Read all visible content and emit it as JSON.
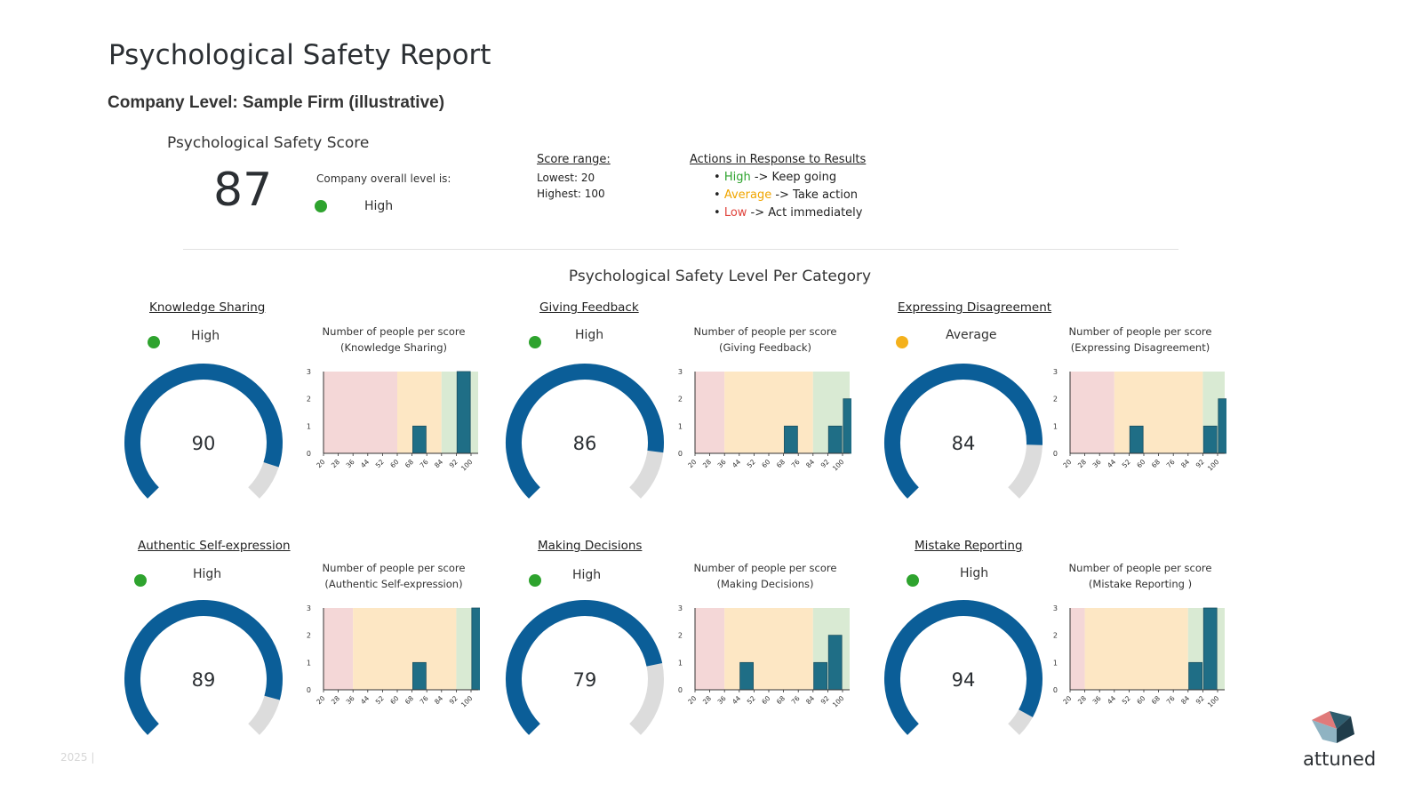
{
  "report": {
    "title": "Psychological Safety Report",
    "subtitle": "Company Level: Sample Firm (illustrative)",
    "score_heading": "Psychological Safety Score",
    "overall_score": "87",
    "overall_caption": "Company overall level is:",
    "overall_level": "High",
    "overall_level_color": "#2ea32e"
  },
  "score_range": {
    "title": "Score range:",
    "lowest": "Lowest: 20",
    "highest": "Highest: 100"
  },
  "actions": {
    "title": "Actions in Response to Results",
    "items": [
      {
        "level": "High",
        "text": " -> Keep going",
        "color": "#2ea32e"
      },
      {
        "level": "Average",
        "text": " -> Take action",
        "color": "#f0a500"
      },
      {
        "level": "Low",
        "text": " -> Act immediately",
        "color": "#e0433c"
      }
    ]
  },
  "section_title": "Psychological Safety Level Per Category",
  "footer": {
    "year": "2025 |",
    "brand": "attuned"
  },
  "colors": {
    "gauge_fill": "#0b5e98",
    "gauge_track": "#dcdcdc",
    "bar": "#1f6e86",
    "zone_low": "#f4d7d7",
    "zone_average": "#fde7c4",
    "zone_high": "#d9ead3",
    "high": "#2ea32e",
    "average": "#f4b11c"
  },
  "chart_data": [
    {
      "type": "bar",
      "name": "Knowledge Sharing",
      "level": "High",
      "level_color": "#2ea32e",
      "score": 90,
      "score_label": "90",
      "title": "Number of people per score",
      "title_paren": "(Knowledge Sharing)",
      "categories": [
        "20",
        "28",
        "36",
        "44",
        "52",
        "60",
        "68",
        "76",
        "84",
        "92",
        "100"
      ],
      "tick_labels": [
        "20",
        "28",
        "36",
        "44",
        "52",
        "60",
        "68",
        "76",
        "84",
        "92",
        "100"
      ],
      "values": [
        0,
        0,
        0,
        0,
        0,
        0,
        1,
        0,
        0,
        3,
        0
      ],
      "ylim": [
        0,
        3
      ],
      "yticks": [
        "0",
        "1",
        "2",
        "3"
      ],
      "zones": {
        "low_end": 60,
        "average_end": 84
      }
    },
    {
      "type": "bar",
      "name": "Giving Feedback",
      "level": "High",
      "level_color": "#2ea32e",
      "score": 86,
      "score_label": "86",
      "title": "Number of people per score",
      "title_paren": "(Giving Feedback)",
      "categories": [
        "20",
        "28",
        "36",
        "44",
        "52",
        "60",
        "68",
        "76",
        "84",
        "92",
        "100"
      ],
      "tick_labels": [
        "20",
        "28",
        "36",
        "44",
        "52",
        "60",
        "68",
        "76",
        "84",
        "92",
        "100"
      ],
      "values": [
        0,
        0,
        0,
        0,
        0,
        0,
        1,
        0,
        0,
        1,
        2
      ],
      "ylim": [
        0,
        3
      ],
      "yticks": [
        "0",
        "1",
        "2",
        "3"
      ],
      "zones": {
        "low_end": 36,
        "average_end": 84
      }
    },
    {
      "type": "bar",
      "name": "Expressing Disagreement",
      "level": "Average",
      "level_color": "#f4b11c",
      "score": 84,
      "score_label": "84",
      "title": "Number of people per score",
      "title_paren": "(Expressing Disagreement)",
      "categories": [
        "20",
        "28",
        "36",
        "44",
        "52",
        "60",
        "68",
        "76",
        "84",
        "92",
        "100"
      ],
      "tick_labels": [
        "20",
        "28",
        "36",
        "44",
        "52",
        "60",
        "68",
        "76",
        "84",
        "92",
        "100"
      ],
      "values": [
        0,
        0,
        0,
        0,
        1,
        0,
        0,
        0,
        0,
        1,
        2
      ],
      "ylim": [
        0,
        3
      ],
      "yticks": [
        "0",
        "1",
        "2",
        "3"
      ],
      "zones": {
        "low_end": 44,
        "average_end": 92
      }
    },
    {
      "type": "bar",
      "name": "Authentic Self-expression",
      "level": "High",
      "level_color": "#2ea32e",
      "score": 89,
      "score_label": "89",
      "title": "Number of people per score",
      "title_paren": "(Authentic Self-expression)",
      "categories": [
        "20",
        "28",
        "36",
        "44",
        "52",
        "60",
        "68",
        "76",
        "84",
        "92",
        "100"
      ],
      "tick_labels": [
        "20",
        "28",
        "36",
        "44",
        "52",
        "60",
        "68",
        "76",
        "84",
        "92",
        "100"
      ],
      "values": [
        0,
        0,
        0,
        0,
        0,
        0,
        1,
        0,
        0,
        0,
        3
      ],
      "ylim": [
        0,
        3
      ],
      "yticks": [
        "0",
        "1",
        "2",
        "3"
      ],
      "zones": {
        "low_end": 36,
        "average_end": 92
      }
    },
    {
      "type": "bar",
      "name": "Making Decisions",
      "level": "High",
      "level_color": "#2ea32e",
      "score": 79,
      "score_label": "79",
      "title": "Number of people per score",
      "title_paren": "(Making Decisions)",
      "categories": [
        "20",
        "28",
        "36",
        "44",
        "52",
        "60",
        "68",
        "76",
        "84",
        "92",
        "100"
      ],
      "tick_labels": [
        "20",
        "28",
        "36",
        "44",
        "52",
        "60",
        "68",
        "76",
        "84",
        "92",
        "100"
      ],
      "values": [
        0,
        0,
        0,
        1,
        0,
        0,
        0,
        0,
        1,
        2,
        0
      ],
      "ylim": [
        0,
        3
      ],
      "yticks": [
        "0",
        "1",
        "2",
        "3"
      ],
      "zones": {
        "low_end": 36,
        "average_end": 84
      }
    },
    {
      "type": "bar",
      "name": "Mistake Reporting ",
      "level": "High",
      "level_color": "#2ea32e",
      "score": 94,
      "score_label": "94",
      "title": "Number of people per score",
      "title_paren": "(Mistake Reporting )",
      "categories": [
        "20",
        "28",
        "36",
        "44",
        "52",
        "60",
        "68",
        "76",
        "84",
        "92",
        "100"
      ],
      "tick_labels": [
        "20",
        "28",
        "36",
        "44",
        "52",
        "60",
        "68",
        "76",
        "84",
        "92",
        "100"
      ],
      "values": [
        0,
        0,
        0,
        0,
        0,
        0,
        0,
        0,
        1,
        3,
        0
      ],
      "ylim": [
        0,
        3
      ],
      "yticks": [
        "0",
        "1",
        "2",
        "3"
      ],
      "zones": {
        "low_end": 28,
        "average_end": 84
      }
    }
  ]
}
